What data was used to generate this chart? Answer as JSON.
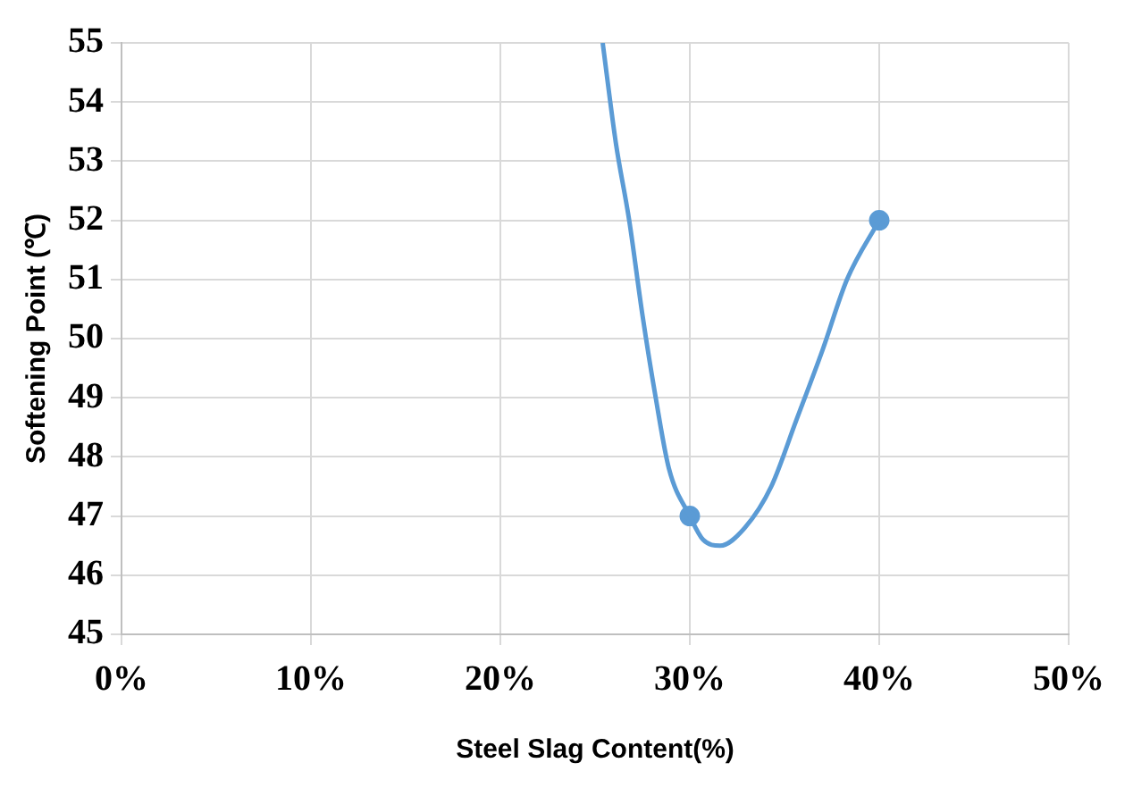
{
  "chart_data": {
    "type": "line",
    "xlabel": "Steel Slag Content(%)",
    "ylabel": "Softening Point (℃)",
    "xlim": [
      0,
      50
    ],
    "xticks": [
      {
        "value": 0,
        "label": "0%"
      },
      {
        "value": 10,
        "label": "10%"
      },
      {
        "value": 20,
        "label": "20%"
      },
      {
        "value": 30,
        "label": "30%"
      },
      {
        "value": 40,
        "label": "40%"
      },
      {
        "value": 50,
        "label": "50%"
      }
    ],
    "ylim": [
      45,
      55
    ],
    "yticks": [
      45,
      46,
      47,
      48,
      49,
      50,
      51,
      52,
      53,
      54,
      55
    ],
    "grid": true,
    "legend": false,
    "series": [
      {
        "type": "line",
        "color": "#5b9bd5",
        "marker": "none",
        "x": [
          25.4,
          26.1,
          26.8,
          27.5,
          28.2,
          28.9,
          30,
          30.7,
          31.6,
          32.9,
          34.3,
          35.6,
          37.0,
          38.3,
          40
        ],
        "values": [
          55,
          53.3,
          52.0,
          50.4,
          49.0,
          47.8,
          47,
          46.6,
          46.5,
          46.8,
          47.5,
          48.6,
          49.8,
          51.0,
          52
        ]
      },
      {
        "type": "scatter",
        "color": "#5b9bd5",
        "marker": "circle",
        "x": [
          30,
          40
        ],
        "values": [
          47,
          52
        ]
      }
    ]
  }
}
